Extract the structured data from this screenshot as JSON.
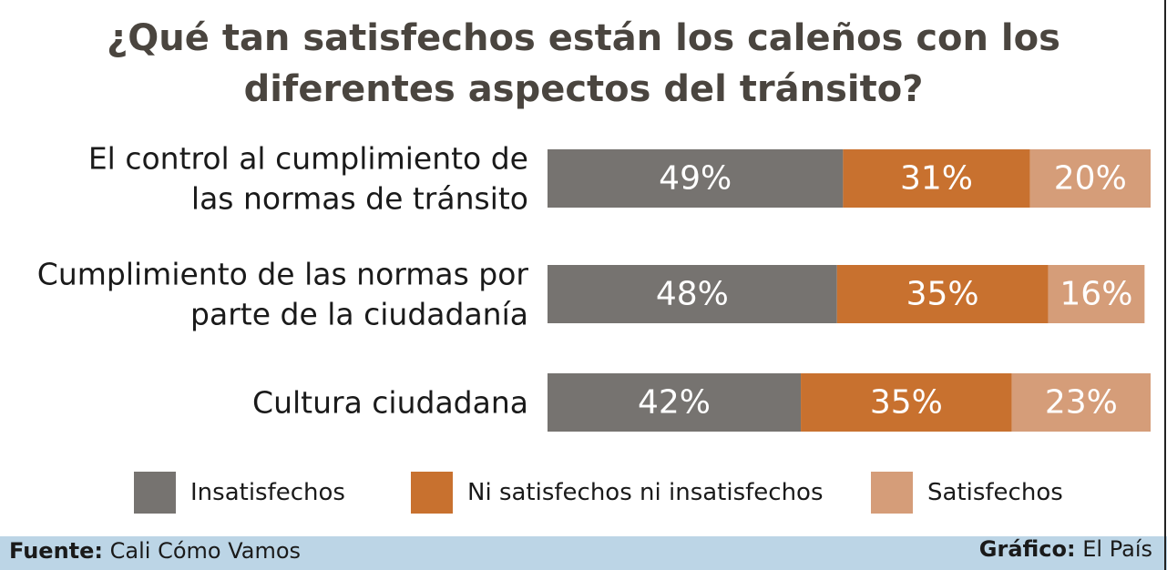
{
  "chart_data": {
    "type": "bar",
    "orientation": "horizontal",
    "stacked": true,
    "title_line1": "¿Qué tan satisfechos están los caleños con los",
    "title_line2": "diferentes aspectos del tránsito?",
    "categories": [
      [
        "El control al cumplimiento de",
        "las normas de tránsito"
      ],
      [
        "Cumplimiento de las normas por",
        "parte de la ciudadanía"
      ],
      [
        "Cultura ciudadana"
      ]
    ],
    "series": [
      {
        "name": "Insatisfechos",
        "values": [
          49,
          48,
          42
        ],
        "color": "#767370",
        "labels": [
          "49%",
          "48%",
          "42%"
        ]
      },
      {
        "name": "Ni satisfechos ni insatisfechos",
        "values": [
          31,
          35,
          35
        ],
        "color": "#c8712f",
        "labels": [
          "31%",
          "35%",
          "35%"
        ]
      },
      {
        "name": "Satisfechos",
        "values": [
          20,
          16,
          23
        ],
        "color": "#d59d79",
        "labels": [
          "20%",
          "16%",
          "23%"
        ]
      }
    ],
    "xlim": [
      0,
      100
    ],
    "grid": false,
    "legend_position": "bottom"
  },
  "footer": {
    "source_label": "Fuente:",
    "source_value": "Cali Cómo Vamos",
    "credit_label": "Gráfico:",
    "credit_value": "El País"
  }
}
